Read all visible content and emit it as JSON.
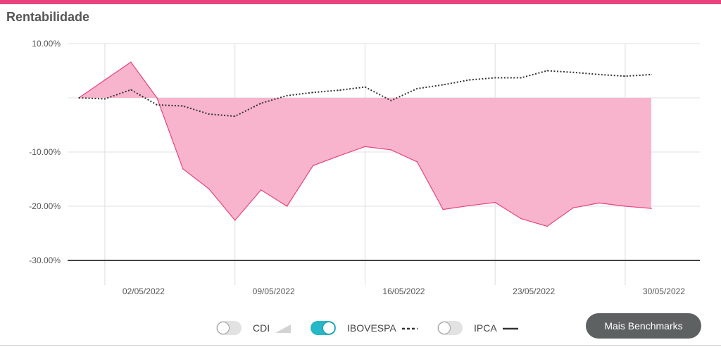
{
  "header": {
    "title": "Rentabilidade"
  },
  "colors": {
    "accent": "#e8437e",
    "area_fill": "#f8b4cc",
    "area_stroke": "#e8437e",
    "ibovespa_line": "#333333",
    "toggle_on": "#26b8c6"
  },
  "chart_data": {
    "type": "area",
    "title": "",
    "xlabel": "",
    "ylabel": "",
    "ylim": [
      -30,
      10
    ],
    "y_ticks": [
      "10.00%",
      "-10.00%",
      "-20.00%",
      "-30.00%"
    ],
    "y_tick_values": [
      10,
      -10,
      -20,
      -30
    ],
    "x_tick_labels": [
      "02/05/2022",
      "09/05/2022",
      "16/05/2022",
      "23/05/2022",
      "30/05/2022"
    ],
    "grid": true,
    "series": [
      {
        "x": [
          "29/04/2022",
          "02/05/2022",
          "03/05/2022",
          "04/05/2022",
          "05/05/2022",
          "06/05/2022",
          "09/05/2022",
          "10/05/2022",
          "11/05/2022",
          "12/05/2022",
          "13/05/2022",
          "16/05/2022",
          "17/05/2022",
          "18/05/2022",
          "19/05/2022",
          "20/05/2022",
          "23/05/2022",
          "24/05/2022",
          "25/05/2022",
          "26/05/2022",
          "27/05/2022",
          "30/05/2022",
          "31/05/2022"
        ],
        "values": [
          0.0,
          3.3,
          6.6,
          0.0,
          -13.1,
          -16.8,
          -22.6,
          -17.0,
          -20.0,
          -12.5,
          -10.7,
          -9.0,
          -9.6,
          -11.8,
          -20.6,
          -19.9,
          -19.3,
          -22.3,
          -23.7,
          -20.3,
          -19.4,
          -20.0,
          -20.4
        ]
      },
      {
        "name": "IBOVESPA",
        "x": [
          "29/04/2022",
          "02/05/2022",
          "03/05/2022",
          "04/05/2022",
          "05/05/2022",
          "06/05/2022",
          "09/05/2022",
          "10/05/2022",
          "11/05/2022",
          "12/05/2022",
          "13/05/2022",
          "16/05/2022",
          "17/05/2022",
          "18/05/2022",
          "19/05/2022",
          "20/05/2022",
          "23/05/2022",
          "24/05/2022",
          "25/05/2022",
          "26/05/2022",
          "27/05/2022",
          "30/05/2022",
          "31/05/2022"
        ],
        "values": [
          0.0,
          -0.2,
          1.5,
          -1.3,
          -1.5,
          -3.0,
          -3.4,
          -1.0,
          0.4,
          1.0,
          1.4,
          2.0,
          -0.5,
          1.7,
          2.4,
          3.3,
          3.7,
          3.7,
          5.0,
          4.7,
          4.3,
          4.0,
          4.3
        ]
      }
    ]
  },
  "legend": [
    {
      "label": "CDI",
      "enabled": false,
      "icon": "area-swatch-icon"
    },
    {
      "label": "IBOVESPA",
      "enabled": true,
      "icon": "dashed-line-icon"
    },
    {
      "label": "IPCA",
      "enabled": false,
      "icon": "solid-line-icon"
    }
  ],
  "button": {
    "label": "Mais Benchmarks"
  }
}
